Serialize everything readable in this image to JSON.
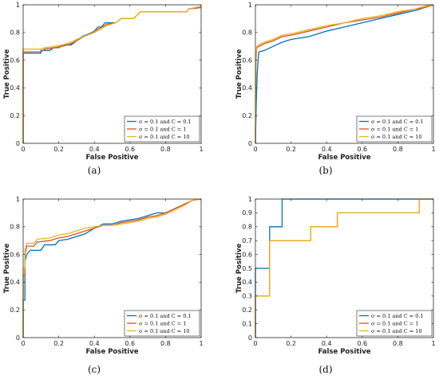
{
  "colors": {
    "sigma_C_0_1": "#0072BD",
    "sigma_C_1": "#D95319",
    "sigma_C_10": "#EDB120",
    "axis": "#262626"
  },
  "chart_data": [
    {
      "type": "line",
      "caption": "(a)",
      "xlabel": "False Positive",
      "ylabel": "True Positive",
      "xlim": [
        0,
        1
      ],
      "ylim": [
        0,
        1
      ],
      "xticks": [
        0,
        0.2,
        0.4,
        0.6,
        0.8,
        1
      ],
      "yticks": [
        0,
        0.2,
        0.4,
        0.6,
        0.8,
        1
      ],
      "xtick_labels": [
        "0",
        "0.2",
        "0.4",
        "0.6",
        "0.8",
        "1"
      ],
      "ytick_labels": [
        "0",
        "0.2",
        "0.4",
        "0.6",
        "0.8",
        "1"
      ],
      "grid": false,
      "legend_position": "bottom-right",
      "series": [
        {
          "name": "σ = 0.1 and C = 0.1",
          "color_key": "sigma_C_0_1",
          "points": [
            [
              0,
              0
            ],
            [
              0,
              0.65
            ],
            [
              0.1,
              0.65
            ],
            [
              0.1,
              0.67
            ],
            [
              0.15,
              0.67
            ],
            [
              0.17,
              0.69
            ],
            [
              0.2,
              0.69
            ],
            [
              0.22,
              0.71
            ],
            [
              0.27,
              0.71
            ],
            [
              0.3,
              0.74
            ],
            [
              0.33,
              0.77
            ],
            [
              0.37,
              0.79
            ],
            [
              0.4,
              0.81
            ],
            [
              0.42,
              0.84
            ],
            [
              0.44,
              0.84
            ],
            [
              0.46,
              0.87
            ],
            [
              0.5,
              0.87
            ],
            [
              0.52,
              0.87
            ],
            [
              0.55,
              0.9
            ],
            [
              0.62,
              0.9
            ],
            [
              0.66,
              0.95
            ],
            [
              0.92,
              0.95
            ],
            [
              0.93,
              0.97
            ],
            [
              1,
              0.98
            ]
          ]
        },
        {
          "name": "σ = 0.1 and C = 1",
          "color_key": "sigma_C_1",
          "points": [
            [
              0,
              0
            ],
            [
              0,
              0.66
            ],
            [
              0.1,
              0.66
            ],
            [
              0.12,
              0.68
            ],
            [
              0.18,
              0.69
            ],
            [
              0.22,
              0.7
            ],
            [
              0.27,
              0.72
            ],
            [
              0.3,
              0.74
            ],
            [
              0.34,
              0.77
            ],
            [
              0.38,
              0.79
            ],
            [
              0.4,
              0.81
            ],
            [
              0.43,
              0.83
            ],
            [
              0.47,
              0.86
            ],
            [
              0.52,
              0.87
            ],
            [
              0.55,
              0.9
            ],
            [
              0.62,
              0.9
            ],
            [
              0.66,
              0.95
            ],
            [
              0.92,
              0.95
            ],
            [
              0.93,
              0.97
            ],
            [
              1,
              0.98
            ]
          ]
        },
        {
          "name": "σ = 0.1 and C = 10",
          "color_key": "sigma_C_10",
          "points": [
            [
              0,
              0
            ],
            [
              0,
              0.68
            ],
            [
              0.1,
              0.68
            ],
            [
              0.12,
              0.69
            ],
            [
              0.18,
              0.7
            ],
            [
              0.22,
              0.71
            ],
            [
              0.27,
              0.73
            ],
            [
              0.3,
              0.75
            ],
            [
              0.34,
              0.77
            ],
            [
              0.38,
              0.79
            ],
            [
              0.4,
              0.8
            ],
            [
              0.43,
              0.82
            ],
            [
              0.47,
              0.85
            ],
            [
              0.52,
              0.87
            ],
            [
              0.55,
              0.9
            ],
            [
              0.62,
              0.9
            ],
            [
              0.66,
              0.95
            ],
            [
              0.92,
              0.95
            ],
            [
              0.93,
              0.97
            ],
            [
              1,
              0.99
            ]
          ]
        }
      ]
    },
    {
      "type": "line",
      "caption": "(b)",
      "xlabel": "False Positive",
      "ylabel": "True Positive",
      "xlim": [
        0,
        1
      ],
      "ylim": [
        0,
        1
      ],
      "xticks": [
        0,
        0.2,
        0.4,
        0.6,
        0.8,
        1
      ],
      "yticks": [
        0,
        0.2,
        0.4,
        0.6,
        0.8,
        1
      ],
      "xtick_labels": [
        "0",
        "0.2",
        "0.4",
        "0.6",
        "0.8",
        "1"
      ],
      "ytick_labels": [
        "0",
        "0.2",
        "0.4",
        "0.6",
        "0.8",
        "1"
      ],
      "grid": false,
      "legend_position": "bottom-right",
      "series": [
        {
          "name": "σ = 0.1 and C = 0.1",
          "color_key": "sigma_C_0_1",
          "points": [
            [
              0,
              0
            ],
            [
              0.005,
              0.3
            ],
            [
              0.01,
              0.5
            ],
            [
              0.015,
              0.6
            ],
            [
              0.02,
              0.66
            ],
            [
              0.05,
              0.67
            ],
            [
              0.1,
              0.7
            ],
            [
              0.15,
              0.73
            ],
            [
              0.2,
              0.75
            ],
            [
              0.25,
              0.76
            ],
            [
              0.3,
              0.77
            ],
            [
              0.4,
              0.81
            ],
            [
              0.5,
              0.84
            ],
            [
              0.6,
              0.87
            ],
            [
              0.7,
              0.9
            ],
            [
              0.8,
              0.93
            ],
            [
              0.9,
              0.96
            ],
            [
              0.95,
              0.98
            ],
            [
              1,
              1
            ]
          ]
        },
        {
          "name": "σ = 0.1 and C = 1",
          "color_key": "sigma_C_1",
          "points": [
            [
              0,
              0
            ],
            [
              0.003,
              0.6
            ],
            [
              0.008,
              0.69
            ],
            [
              0.02,
              0.7
            ],
            [
              0.05,
              0.72
            ],
            [
              0.1,
              0.74
            ],
            [
              0.15,
              0.77
            ],
            [
              0.2,
              0.78
            ],
            [
              0.3,
              0.81
            ],
            [
              0.4,
              0.84
            ],
            [
              0.5,
              0.87
            ],
            [
              0.6,
              0.89
            ],
            [
              0.7,
              0.91
            ],
            [
              0.8,
              0.94
            ],
            [
              0.9,
              0.97
            ],
            [
              0.95,
              0.98
            ],
            [
              1,
              1
            ]
          ]
        },
        {
          "name": "σ = 0.1 and C = 10",
          "color_key": "sigma_C_10",
          "points": [
            [
              0,
              0
            ],
            [
              0.003,
              0.62
            ],
            [
              0.008,
              0.7
            ],
            [
              0.02,
              0.71
            ],
            [
              0.05,
              0.73
            ],
            [
              0.1,
              0.75
            ],
            [
              0.15,
              0.78
            ],
            [
              0.2,
              0.79
            ],
            [
              0.3,
              0.82
            ],
            [
              0.4,
              0.85
            ],
            [
              0.5,
              0.87
            ],
            [
              0.6,
              0.9
            ],
            [
              0.7,
              0.92
            ],
            [
              0.8,
              0.95
            ],
            [
              0.9,
              0.97
            ],
            [
              0.95,
              0.99
            ],
            [
              1,
              1
            ]
          ]
        }
      ]
    },
    {
      "type": "line",
      "caption": "(c)",
      "xlabel": "False Positive",
      "ylabel": "True Positive",
      "xlim": [
        0,
        1
      ],
      "ylim": [
        0,
        1
      ],
      "xticks": [
        0,
        0.2,
        0.4,
        0.6,
        0.8,
        1
      ],
      "yticks": [
        0,
        0.2,
        0.4,
        0.6,
        0.8,
        1
      ],
      "xtick_labels": [
        "0",
        "0.2",
        "0.4",
        "0.6",
        "0.8",
        "1"
      ],
      "ytick_labels": [
        "0",
        "0.2",
        "0.4",
        "0.6",
        "0.8",
        "1"
      ],
      "grid": false,
      "legend_position": "bottom-right",
      "series": [
        {
          "name": "σ = 0.1 and C = 0.1",
          "color_key": "sigma_C_0_1",
          "points": [
            [
              0,
              0
            ],
            [
              0,
              0.27
            ],
            [
              0.01,
              0.27
            ],
            [
              0.01,
              0.55
            ],
            [
              0.02,
              0.6
            ],
            [
              0.04,
              0.63
            ],
            [
              0.1,
              0.63
            ],
            [
              0.12,
              0.67
            ],
            [
              0.18,
              0.67
            ],
            [
              0.2,
              0.7
            ],
            [
              0.25,
              0.71
            ],
            [
              0.3,
              0.73
            ],
            [
              0.35,
              0.75
            ],
            [
              0.4,
              0.79
            ],
            [
              0.45,
              0.82
            ],
            [
              0.5,
              0.82
            ],
            [
              0.55,
              0.84
            ],
            [
              0.6,
              0.85
            ],
            [
              0.65,
              0.86
            ],
            [
              0.7,
              0.88
            ],
            [
              0.75,
              0.9
            ],
            [
              0.8,
              0.9
            ],
            [
              0.85,
              0.93
            ],
            [
              0.9,
              0.96
            ],
            [
              0.95,
              0.99
            ],
            [
              1,
              1
            ]
          ]
        },
        {
          "name": "σ = 0.1 and C = 1",
          "color_key": "sigma_C_1",
          "points": [
            [
              0,
              0
            ],
            [
              0,
              0.45
            ],
            [
              0.01,
              0.45
            ],
            [
              0.01,
              0.6
            ],
            [
              0.02,
              0.66
            ],
            [
              0.06,
              0.66
            ],
            [
              0.08,
              0.69
            ],
            [
              0.15,
              0.7
            ],
            [
              0.2,
              0.72
            ],
            [
              0.25,
              0.73
            ],
            [
              0.3,
              0.75
            ],
            [
              0.35,
              0.77
            ],
            [
              0.4,
              0.79
            ],
            [
              0.45,
              0.81
            ],
            [
              0.5,
              0.81
            ],
            [
              0.55,
              0.83
            ],
            [
              0.6,
              0.84
            ],
            [
              0.65,
              0.85
            ],
            [
              0.7,
              0.87
            ],
            [
              0.75,
              0.88
            ],
            [
              0.8,
              0.9
            ],
            [
              0.85,
              0.93
            ],
            [
              0.9,
              0.96
            ],
            [
              0.95,
              0.99
            ],
            [
              1,
              1
            ]
          ]
        },
        {
          "name": "σ = 0.1 and C = 10",
          "color_key": "sigma_C_10",
          "points": [
            [
              0,
              0
            ],
            [
              0,
              0.5
            ],
            [
              0.01,
              0.5
            ],
            [
              0.01,
              0.63
            ],
            [
              0.02,
              0.68
            ],
            [
              0.06,
              0.68
            ],
            [
              0.08,
              0.71
            ],
            [
              0.15,
              0.72
            ],
            [
              0.2,
              0.74
            ],
            [
              0.25,
              0.75
            ],
            [
              0.3,
              0.77
            ],
            [
              0.35,
              0.79
            ],
            [
              0.4,
              0.8
            ],
            [
              0.45,
              0.81
            ],
            [
              0.5,
              0.81
            ],
            [
              0.55,
              0.82
            ],
            [
              0.6,
              0.83
            ],
            [
              0.65,
              0.84
            ],
            [
              0.7,
              0.86
            ],
            [
              0.75,
              0.87
            ],
            [
              0.8,
              0.89
            ],
            [
              0.85,
              0.92
            ],
            [
              0.9,
              0.95
            ],
            [
              0.95,
              0.99
            ],
            [
              1,
              1
            ]
          ]
        }
      ]
    },
    {
      "type": "line",
      "caption": "(d)",
      "xlabel": "False Positive",
      "ylabel": "True Positive",
      "xlim": [
        0,
        1
      ],
      "ylim": [
        0,
        1
      ],
      "xticks": [
        0,
        0.2,
        0.4,
        0.6,
        0.8,
        1
      ],
      "yticks": [
        0,
        0.1,
        0.2,
        0.3,
        0.4,
        0.5,
        0.6,
        0.7,
        0.8,
        0.9,
        1
      ],
      "xtick_labels": [
        "0",
        "0.2",
        "0.4",
        "0.6",
        "0.8",
        "1"
      ],
      "ytick_labels": [
        "0",
        "0.1",
        "0.2",
        "0.3",
        "0.4",
        "0.5",
        "0.6",
        "0.7",
        "0.8",
        "0.9",
        "1"
      ],
      "grid": false,
      "legend_position": "bottom-right",
      "series": [
        {
          "name": "σ = 0.1 and C = 0.1",
          "color_key": "sigma_C_0_1",
          "points": [
            [
              0,
              0
            ],
            [
              0,
              0.5
            ],
            [
              0.08,
              0.5
            ],
            [
              0.08,
              0.8
            ],
            [
              0.15,
              0.8
            ],
            [
              0.15,
              1
            ],
            [
              1,
              1
            ]
          ]
        },
        {
          "name": "σ = 0.1 and C = 1",
          "color_key": "sigma_C_1",
          "points": [
            [
              0,
              0
            ],
            [
              0,
              0.3
            ],
            [
              0.08,
              0.3
            ],
            [
              0.08,
              0.7
            ],
            [
              0.31,
              0.7
            ],
            [
              0.31,
              0.8
            ],
            [
              0.46,
              0.8
            ],
            [
              0.46,
              0.9
            ],
            [
              0.92,
              0.9
            ],
            [
              0.92,
              1
            ],
            [
              1,
              1
            ]
          ]
        },
        {
          "name": "σ = 0.1 and C = 10",
          "color_key": "sigma_C_10",
          "points": [
            [
              0,
              0
            ],
            [
              0,
              0.3
            ],
            [
              0.08,
              0.3
            ],
            [
              0.08,
              0.7
            ],
            [
              0.31,
              0.7
            ],
            [
              0.31,
              0.8
            ],
            [
              0.46,
              0.8
            ],
            [
              0.46,
              0.9
            ],
            [
              0.92,
              0.9
            ],
            [
              0.92,
              1
            ],
            [
              1,
              1
            ]
          ]
        }
      ]
    }
  ]
}
